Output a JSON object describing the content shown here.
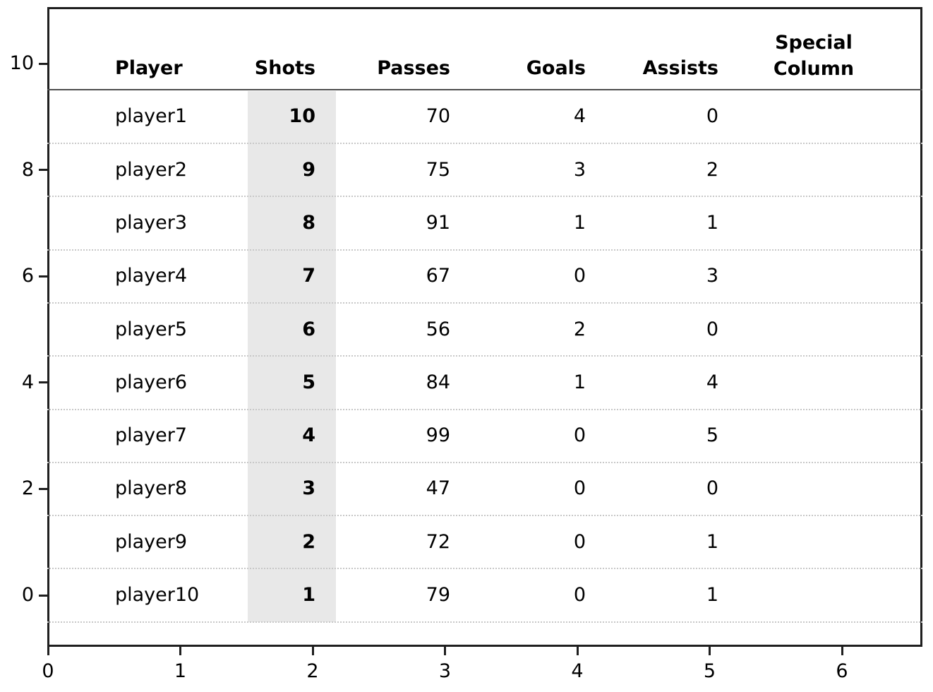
{
  "chart_data": {
    "type": "table",
    "title": "",
    "legend": "none",
    "grid": "dotted horizontal row separators",
    "highlight_color": "#e8e8e8",
    "columns": [
      {
        "label": "Player",
        "align": "left",
        "highlighted": false,
        "bold_values": false
      },
      {
        "label": "Shots",
        "align": "right",
        "highlighted": true,
        "bold_values": true
      },
      {
        "label": "Passes",
        "align": "right",
        "highlighted": false,
        "bold_values": false
      },
      {
        "label": "Goals",
        "align": "right",
        "highlighted": false,
        "bold_values": false
      },
      {
        "label": "Assists",
        "align": "right",
        "highlighted": false,
        "bold_values": false
      },
      {
        "label": "Special Column",
        "align": "center",
        "highlighted": false,
        "bold_values": false
      }
    ],
    "rows": [
      [
        "player1",
        "10",
        "70",
        "4",
        "0",
        ""
      ],
      [
        "player2",
        "9",
        "75",
        "3",
        "2",
        ""
      ],
      [
        "player3",
        "8",
        "91",
        "1",
        "1",
        ""
      ],
      [
        "player4",
        "7",
        "67",
        "0",
        "3",
        ""
      ],
      [
        "player5",
        "6",
        "56",
        "2",
        "0",
        ""
      ],
      [
        "player6",
        "5",
        "84",
        "1",
        "4",
        ""
      ],
      [
        "player7",
        "4",
        "99",
        "0",
        "5",
        ""
      ],
      [
        "player8",
        "3",
        "47",
        "0",
        "0",
        ""
      ],
      [
        "player9",
        "2",
        "72",
        "0",
        "1",
        ""
      ],
      [
        "player10",
        "1",
        "79",
        "0",
        "1",
        ""
      ]
    ],
    "x_axis": {
      "ticks": [
        "0",
        "1",
        "2",
        "3",
        "4",
        "5",
        "6"
      ]
    },
    "y_axis": {
      "ticks": [
        "10",
        "8",
        "6",
        "4",
        "2",
        "0"
      ]
    }
  }
}
